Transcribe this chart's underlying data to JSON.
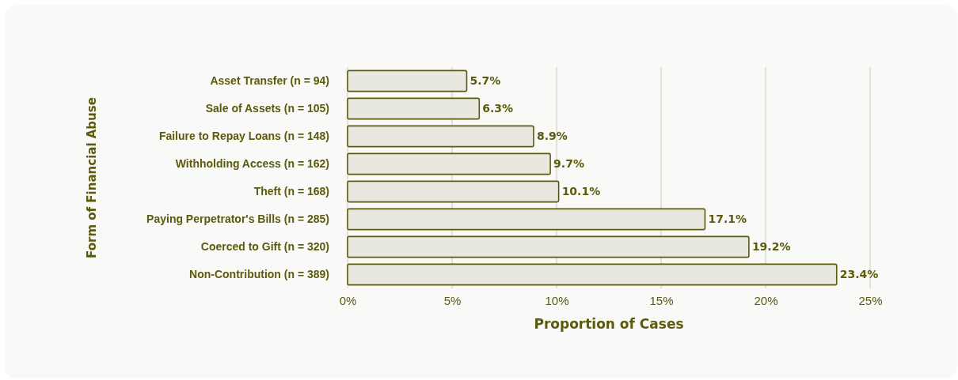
{
  "chart_data": {
    "type": "bar",
    "orientation": "horizontal",
    "xlabel": "Proportion of Cases",
    "ylabel": "Form of Financial Abuse",
    "categories": [
      "Asset Transfer (n = 94)",
      "Sale of Assets (n = 105)",
      "Failure to Repay Loans (n = 148)",
      "Withholding Access (n = 162)",
      "Theft (n = 168)",
      "Paying Perpetrator's Bills (n = 285)",
      "Coerced to Gift (n = 320)",
      "Non-Contribution (n = 389)"
    ],
    "values": [
      5.7,
      6.3,
      8.9,
      9.7,
      10.1,
      17.1,
      19.2,
      23.4
    ],
    "value_labels": [
      "5.7%",
      "6.3%",
      "8.9%",
      "9.7%",
      "10.1%",
      "17.1%",
      "19.2%",
      "23.4%"
    ],
    "color": "#e8e8e0",
    "xlim": [
      0,
      25
    ],
    "xticks": [
      {
        "value": 0,
        "label": "0%"
      },
      {
        "value": 5,
        "label": "5%"
      },
      {
        "value": 10,
        "label": "10%"
      },
      {
        "value": 15,
        "label": "15%"
      },
      {
        "value": 20,
        "label": "20%"
      },
      {
        "value": 25,
        "label": "25%"
      }
    ],
    "grid": "x"
  }
}
